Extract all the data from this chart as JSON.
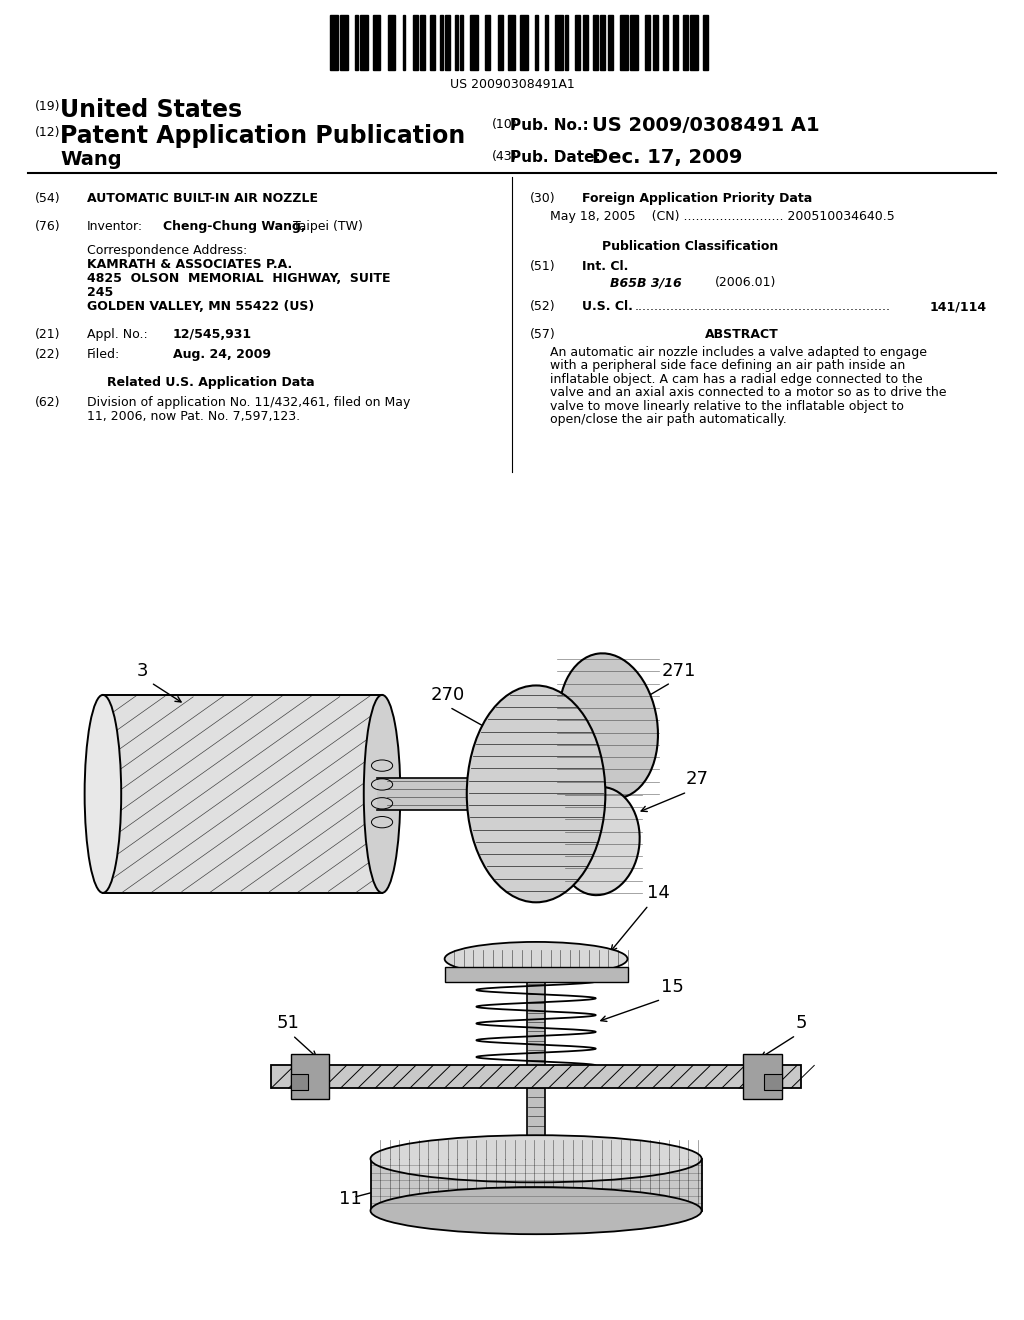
{
  "background_color": "#ffffff",
  "barcode_text": "US 20090308491A1",
  "header": {
    "number_19": "(19)",
    "united_states": "United States",
    "number_12": "(12)",
    "patent_app_pub": "Patent Application Publication",
    "number_10": "(10)",
    "pub_no_label": "Pub. No.:",
    "pub_no_value": "US 2009/0308491 A1",
    "inventor_name": "Wang",
    "number_43": "(43)",
    "pub_date_label": "Pub. Date:",
    "pub_date_value": "Dec. 17, 2009"
  },
  "left_col": {
    "54_label": "(54)",
    "54_title": "AUTOMATIC BUILT-IN AIR NOZZLE",
    "76_label": "(76)",
    "76_text": "Inventor:",
    "76_name": "Cheng-Chung Wang,",
    "76_location": "Taipei (TW)",
    "corr_addr_label": "Correspondence Address:",
    "corr_addr_line1": "KAMRATH & ASSOCIATES P.A.",
    "corr_addr_line2": "4825  OLSON  MEMORIAL  HIGHWAY,  SUITE",
    "corr_addr_line3": "245",
    "corr_addr_line4": "GOLDEN VALLEY, MN 55422 (US)",
    "21_label": "(21)",
    "21_text": "Appl. No.:",
    "21_value": "12/545,931",
    "22_label": "(22)",
    "22_text": "Filed:",
    "22_value": "Aug. 24, 2009",
    "related_header": "Related U.S. Application Data",
    "62_label": "(62)",
    "62_line1": "Division of application No. 11/432,461, filed on May",
    "62_line2": "11, 2006, now Pat. No. 7,597,123."
  },
  "right_col": {
    "30_label": "(30)",
    "30_header": "Foreign Application Priority Data",
    "30_line": "May 18, 2005    (CN) ......................... 200510034640.5",
    "pub_class_header": "Publication Classification",
    "51_label": "(51)",
    "51_text": "Int. Cl.",
    "51_class": "B65B 3/16",
    "51_year": "(2006.01)",
    "52_label": "(52)",
    "52_text": "U.S. Cl.",
    "52_dots": "................................................................",
    "52_value": "141/114",
    "57_label": "(57)",
    "57_header": "ABSTRACT",
    "57_lines": [
      "An automatic air nozzle includes a valve adapted to engage",
      "with a peripheral side face defining an air path inside an",
      "inflatable object. A cam has a radial edge connected to the",
      "valve and an axial axis connected to a motor so as to drive the",
      "valve to move linearly relative to the inflatable object to",
      "open/close the air path automatically."
    ]
  }
}
